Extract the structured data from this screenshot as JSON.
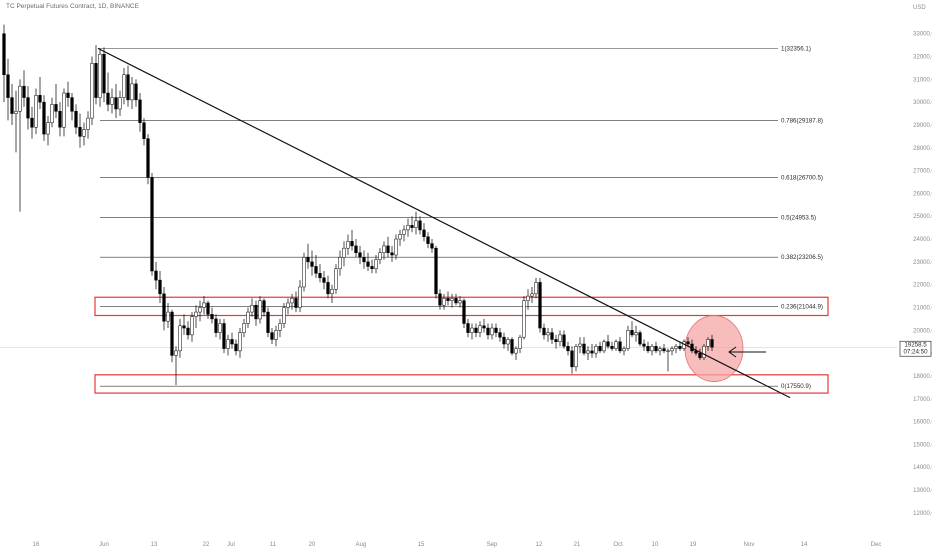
{
  "header": {
    "symbol_line": "TC Perpetual Futures Contract, 1D, BINANCE"
  },
  "chart_data": {
    "type": "candlestick",
    "title": "TC Perpetual Futures Contract, 1D, BINANCE",
    "y_axis_currency": "USD",
    "y_ticks": [
      "33000.0",
      "32000.0",
      "31000.0",
      "30000.0",
      "29000.0",
      "28000.0",
      "27000.0",
      "26000.0",
      "25000.0",
      "24000.0",
      "23000.0",
      "22000.0",
      "21000.0",
      "20000.0",
      "19000.0",
      "18000.0",
      "17000.0",
      "16000.0",
      "15000.0",
      "14000.0",
      "13000.0",
      "12000.0"
    ],
    "ylim": [
      11600,
      33600
    ],
    "x_ticks": [
      "16",
      "Jun",
      "13",
      "22",
      "Jul",
      "11",
      "20",
      "Aug",
      "15",
      "Sep",
      "12",
      "21",
      "Oct",
      "10",
      "19",
      "Nov",
      "14",
      "Dec"
    ],
    "last_price": {
      "value": 19258.5,
      "label": "19258.5",
      "countdown": "07:24:50"
    },
    "fib_levels": [
      {
        "label": "1(32356.1)",
        "value": 32356.1
      },
      {
        "label": "0.786(29187.8)",
        "value": 29187.8
      },
      {
        "label": "0.618(26700.5)",
        "value": 26700.5
      },
      {
        "label": "0.5(24953.5)",
        "value": 24953.5
      },
      {
        "label": "0.382(23206.5)",
        "value": 23206.5
      },
      {
        "label": "0.236(21044.9)",
        "value": 21044.9
      },
      {
        "label": "0(17550.9)",
        "value": 17550.9
      }
    ],
    "zones": [
      {
        "name": "resistance-zone",
        "top": 21450,
        "bottom": 20650,
        "color": "#e53935"
      },
      {
        "name": "support-zone",
        "top": 18050,
        "bottom": 17250,
        "color": "#e53935"
      }
    ],
    "trendline": {
      "from": {
        "x": 98,
        "y": 32356.1
      },
      "to": {
        "x": 790,
        "y": 17050
      }
    },
    "highlight": {
      "cx": 714,
      "cy": 19200,
      "fill": "#f4a5a5"
    },
    "candles": [
      [
        4,
        33000,
        33400,
        30000,
        31200
      ],
      [
        8,
        31200,
        31900,
        29200,
        30200
      ],
      [
        12,
        30200,
        30800,
        29000,
        29500
      ],
      [
        16,
        29500,
        30500,
        27800,
        29600
      ],
      [
        20,
        29600,
        31000,
        25200,
        30700
      ],
      [
        24,
        30700,
        31400,
        29800,
        30200
      ],
      [
        28,
        30200,
        30700,
        28800,
        29300
      ],
      [
        32,
        29300,
        29800,
        28400,
        28900
      ],
      [
        36,
        28900,
        30600,
        28600,
        30300
      ],
      [
        40,
        30300,
        31100,
        29700,
        30000
      ],
      [
        44,
        30000,
        30300,
        28300,
        28600
      ],
      [
        48,
        28600,
        29400,
        28100,
        29100
      ],
      [
        52,
        29100,
        30200,
        28900,
        29900
      ],
      [
        56,
        29900,
        30800,
        29300,
        29600
      ],
      [
        60,
        29600,
        30000,
        28500,
        28900
      ],
      [
        64,
        28900,
        30600,
        28500,
        30400
      ],
      [
        68,
        30400,
        30900,
        29800,
        30200
      ],
      [
        72,
        30200,
        30400,
        29200,
        29600
      ],
      [
        76,
        29600,
        29900,
        28600,
        28900
      ],
      [
        80,
        28900,
        29500,
        28000,
        28500
      ],
      [
        84,
        28500,
        29100,
        28100,
        28800
      ],
      [
        88,
        28800,
        29600,
        28400,
        29300
      ],
      [
        92,
        29300,
        32000,
        29000,
        31700
      ],
      [
        96,
        31700,
        32500,
        29900,
        30200
      ],
      [
        100,
        30200,
        32300,
        29800,
        32100
      ],
      [
        104,
        32100,
        32400,
        30000,
        30400
      ],
      [
        108,
        30400,
        31300,
        29600,
        29900
      ],
      [
        112,
        29900,
        30600,
        29500,
        30200
      ],
      [
        116,
        30200,
        30800,
        29300,
        29700
      ],
      [
        120,
        29700,
        30500,
        29400,
        30200
      ],
      [
        124,
        30200,
        31500,
        29900,
        31200
      ],
      [
        128,
        31200,
        31600,
        29800,
        30100
      ],
      [
        132,
        30100,
        31100,
        29700,
        30800
      ],
      [
        136,
        30800,
        31000,
        29800,
        30100
      ],
      [
        140,
        30100,
        30400,
        28700,
        29100
      ],
      [
        144,
        29100,
        29300,
        28100,
        28400
      ],
      [
        148,
        28400,
        28600,
        26400,
        26700
      ],
      [
        152,
        26700,
        26900,
        22400,
        22600
      ],
      [
        156,
        22600,
        23000,
        21800,
        22200
      ],
      [
        160,
        22200,
        22600,
        21200,
        21600
      ],
      [
        164,
        21600,
        21900,
        20000,
        20400
      ],
      [
        168,
        20400,
        21200,
        20100,
        20800
      ],
      [
        172,
        20800,
        20900,
        18600,
        18900
      ],
      [
        176,
        18900,
        19300,
        17600,
        19100
      ],
      [
        180,
        19100,
        20500,
        18800,
        20200
      ],
      [
        184,
        20200,
        20700,
        19800,
        20100
      ],
      [
        188,
        20100,
        20400,
        19600,
        19800
      ],
      [
        192,
        19800,
        20800,
        19500,
        20600
      ],
      [
        196,
        20600,
        21100,
        20100,
        20800
      ],
      [
        200,
        20800,
        21300,
        20400,
        21000
      ],
      [
        204,
        21000,
        21500,
        20700,
        21200
      ],
      [
        208,
        21200,
        21300,
        20500,
        20700
      ],
      [
        212,
        20700,
        21000,
        20300,
        20500
      ],
      [
        216,
        20500,
        20700,
        19700,
        19900
      ],
      [
        220,
        19900,
        20500,
        19600,
        20300
      ],
      [
        224,
        20300,
        20500,
        19000,
        19200
      ],
      [
        228,
        19200,
        19800,
        18900,
        19600
      ],
      [
        232,
        19600,
        19900,
        19200,
        19400
      ],
      [
        236,
        19400,
        19600,
        18900,
        19100
      ],
      [
        240,
        19100,
        20100,
        18800,
        19900
      ],
      [
        244,
        19900,
        20500,
        19700,
        20300
      ],
      [
        248,
        20300,
        21000,
        20100,
        20800
      ],
      [
        252,
        20800,
        21400,
        20600,
        21100
      ],
      [
        256,
        21100,
        21300,
        20200,
        20500
      ],
      [
        260,
        20500,
        21500,
        20300,
        21300
      ],
      [
        264,
        21300,
        21400,
        20600,
        20800
      ],
      [
        268,
        20800,
        21000,
        19700,
        19900
      ],
      [
        272,
        19900,
        20100,
        19400,
        19600
      ],
      [
        276,
        19600,
        20200,
        19300,
        20000
      ],
      [
        280,
        20000,
        20500,
        19700,
        20300
      ],
      [
        284,
        20300,
        21200,
        20100,
        21000
      ],
      [
        288,
        21000,
        21400,
        20700,
        21200
      ],
      [
        292,
        21200,
        21600,
        20900,
        21400
      ],
      [
        296,
        21400,
        21700,
        20800,
        21000
      ],
      [
        300,
        21000,
        22200,
        20800,
        21900
      ],
      [
        304,
        21900,
        23400,
        21700,
        23200
      ],
      [
        308,
        23200,
        23800,
        22700,
        23000
      ],
      [
        312,
        23000,
        23500,
        22400,
        22800
      ],
      [
        316,
        22800,
        23300,
        22300,
        22500
      ],
      [
        320,
        22500,
        22900,
        22100,
        22300
      ],
      [
        324,
        22300,
        22600,
        21800,
        22100
      ],
      [
        328,
        22100,
        22400,
        21400,
        21600
      ],
      [
        332,
        21600,
        22000,
        21200,
        21800
      ],
      [
        336,
        21800,
        22900,
        21600,
        22700
      ],
      [
        340,
        22700,
        23500,
        22400,
        23200
      ],
      [
        344,
        23200,
        23900,
        22800,
        23600
      ],
      [
        348,
        23600,
        24200,
        23300,
        23900
      ],
      [
        352,
        23900,
        24400,
        23500,
        23700
      ],
      [
        356,
        23700,
        24000,
        23200,
        23400
      ],
      [
        360,
        23400,
        23700,
        22900,
        23200
      ],
      [
        364,
        23200,
        23500,
        22700,
        23000
      ],
      [
        368,
        23000,
        23400,
        22600,
        22800
      ],
      [
        372,
        22800,
        23100,
        22500,
        22700
      ],
      [
        376,
        22700,
        23300,
        22500,
        23100
      ],
      [
        380,
        23100,
        23600,
        22900,
        23400
      ],
      [
        384,
        23400,
        23900,
        23100,
        23700
      ],
      [
        388,
        23700,
        24100,
        23200,
        23400
      ],
      [
        392,
        23400,
        23700,
        23000,
        23300
      ],
      [
        396,
        23300,
        24200,
        23100,
        24000
      ],
      [
        400,
        24000,
        24400,
        23700,
        24200
      ],
      [
        404,
        24200,
        24600,
        23900,
        24400
      ],
      [
        408,
        24400,
        24900,
        24100,
        24600
      ],
      [
        412,
        24600,
        25000,
        24300,
        24500
      ],
      [
        416,
        24500,
        25200,
        24200,
        24800
      ],
      [
        420,
        24800,
        25000,
        24200,
        24400
      ],
      [
        424,
        24400,
        24700,
        23900,
        24100
      ],
      [
        428,
        24100,
        24300,
        23600,
        23800
      ],
      [
        432,
        23800,
        24000,
        23400,
        23600
      ],
      [
        436,
        23600,
        23700,
        21400,
        21600
      ],
      [
        440,
        21600,
        21800,
        20900,
        21100
      ],
      [
        444,
        21100,
        21600,
        20900,
        21400
      ],
      [
        448,
        21400,
        21700,
        21100,
        21300
      ],
      [
        452,
        21300,
        21600,
        21000,
        21400
      ],
      [
        456,
        21400,
        21600,
        21100,
        21200
      ],
      [
        460,
        21200,
        21500,
        21000,
        21300
      ],
      [
        464,
        21300,
        21400,
        20100,
        20300
      ],
      [
        468,
        20300,
        20500,
        19700,
        19900
      ],
      [
        472,
        19900,
        20300,
        19600,
        20100
      ],
      [
        476,
        20100,
        20300,
        19700,
        19900
      ],
      [
        480,
        19900,
        20400,
        19700,
        20200
      ],
      [
        484,
        20200,
        20500,
        19900,
        20100
      ],
      [
        488,
        20100,
        20300,
        19600,
        19800
      ],
      [
        492,
        19800,
        20300,
        19600,
        20100
      ],
      [
        496,
        20100,
        20300,
        19700,
        19900
      ],
      [
        500,
        19900,
        20100,
        19500,
        19700
      ],
      [
        504,
        19700,
        19900,
        19200,
        19400
      ],
      [
        508,
        19400,
        19700,
        19100,
        19600
      ],
      [
        512,
        19600,
        19700,
        18900,
        19000
      ],
      [
        516,
        19000,
        19300,
        18700,
        19200
      ],
      [
        520,
        19200,
        19800,
        19000,
        19700
      ],
      [
        524,
        19700,
        21500,
        19600,
        21300
      ],
      [
        528,
        21300,
        21800,
        20900,
        21500
      ],
      [
        532,
        21500,
        21900,
        21200,
        21600
      ],
      [
        536,
        21600,
        22300,
        21400,
        22100
      ],
      [
        540,
        22100,
        22300,
        19900,
        20100
      ],
      [
        544,
        20100,
        20300,
        19600,
        19800
      ],
      [
        548,
        19800,
        20100,
        19500,
        19900
      ],
      [
        552,
        19900,
        20100,
        19400,
        19600
      ],
      [
        556,
        19600,
        19800,
        19200,
        19500
      ],
      [
        560,
        19500,
        20000,
        19300,
        19800
      ],
      [
        564,
        19800,
        20000,
        19200,
        19300
      ],
      [
        568,
        19300,
        19500,
        18900,
        19100
      ],
      [
        572,
        19100,
        19300,
        18100,
        18400
      ],
      [
        576,
        18400,
        19400,
        18200,
        19300
      ],
      [
        580,
        19300,
        19700,
        19000,
        19400
      ],
      [
        584,
        19400,
        19700,
        18900,
        19000
      ],
      [
        588,
        19000,
        19300,
        18700,
        19100
      ],
      [
        592,
        19100,
        19400,
        18800,
        19000
      ],
      [
        596,
        19000,
        19400,
        18800,
        19300
      ],
      [
        600,
        19300,
        19500,
        19000,
        19100
      ],
      [
        604,
        19100,
        19600,
        19000,
        19500
      ],
      [
        608,
        19500,
        19800,
        19200,
        19300
      ],
      [
        612,
        19300,
        19500,
        19100,
        19200
      ],
      [
        616,
        19200,
        19600,
        19100,
        19500
      ],
      [
        620,
        19500,
        19700,
        19000,
        19100
      ],
      [
        624,
        19100,
        19300,
        18900,
        19200
      ],
      [
        628,
        19200,
        20200,
        19100,
        20000
      ],
      [
        632,
        20000,
        20400,
        19700,
        19800
      ],
      [
        636,
        19800,
        20200,
        19500,
        19900
      ],
      [
        640,
        19900,
        20000,
        19300,
        19400
      ],
      [
        644,
        19400,
        19600,
        19100,
        19300
      ],
      [
        648,
        19300,
        19500,
        19000,
        19100
      ],
      [
        652,
        19100,
        19400,
        18900,
        19300
      ],
      [
        656,
        19300,
        19500,
        19000,
        19100
      ],
      [
        660,
        19100,
        19300,
        18900,
        19200
      ],
      [
        664,
        19200,
        19400,
        19000,
        19100
      ],
      [
        668,
        19100,
        19200,
        18200,
        19100
      ],
      [
        672,
        19100,
        19300,
        18900,
        19200
      ],
      [
        676,
        19200,
        19400,
        19000,
        19300
      ],
      [
        680,
        19300,
        19500,
        19100,
        19200
      ],
      [
        684,
        19200,
        19600,
        19100,
        19500
      ],
      [
        688,
        19500,
        19700,
        19300,
        19400
      ],
      [
        692,
        19400,
        19600,
        19000,
        19100
      ],
      [
        696,
        19100,
        19300,
        18900,
        19000
      ],
      [
        700,
        19000,
        19200,
        18700,
        18800
      ],
      [
        704,
        18800,
        19400,
        18700,
        19300
      ],
      [
        708,
        19300,
        19700,
        19100,
        19600
      ],
      [
        712,
        19600,
        19800,
        19100,
        19258.5
      ]
    ]
  }
}
